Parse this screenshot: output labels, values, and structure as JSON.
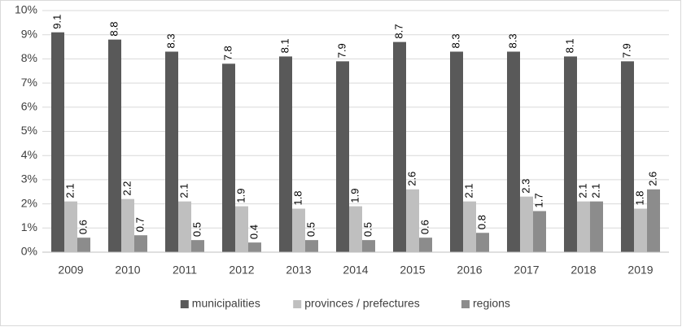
{
  "chart_data": {
    "type": "bar",
    "categories": [
      "2009",
      "2010",
      "2011",
      "2012",
      "2013",
      "2014",
      "2015",
      "2016",
      "2017",
      "2018",
      "2019"
    ],
    "series": [
      {
        "name": "municipalities",
        "color": "#595959",
        "values": [
          9.1,
          8.8,
          8.3,
          7.8,
          8.1,
          7.9,
          8.7,
          8.3,
          8.3,
          8.1,
          7.9
        ]
      },
      {
        "name": "provinces / prefectures",
        "color": "#bfbfbf",
        "values": [
          2.1,
          2.2,
          2.1,
          1.9,
          1.8,
          1.9,
          2.6,
          2.1,
          2.3,
          2.1,
          1.8
        ]
      },
      {
        "name": "regions",
        "color": "#8c8c8c",
        "values": [
          0.6,
          0.7,
          0.5,
          0.4,
          0.5,
          0.5,
          0.6,
          0.8,
          1.7,
          2.1,
          2.6
        ]
      }
    ],
    "ylim": [
      0,
      10
    ],
    "yticks": [
      {
        "value": 0,
        "label": "0%"
      },
      {
        "value": 1,
        "label": "1%"
      },
      {
        "value": 2,
        "label": "2%"
      },
      {
        "value": 3,
        "label": "3%"
      },
      {
        "value": 4,
        "label": "4%"
      },
      {
        "value": 5,
        "label": "5%"
      },
      {
        "value": 6,
        "label": "6%"
      },
      {
        "value": 7,
        "label": "7%"
      },
      {
        "value": 8,
        "label": "8%"
      },
      {
        "value": 9,
        "label": "9%"
      },
      {
        "value": 10,
        "label": "10%"
      }
    ],
    "grid": true,
    "legend": "bottom"
  }
}
